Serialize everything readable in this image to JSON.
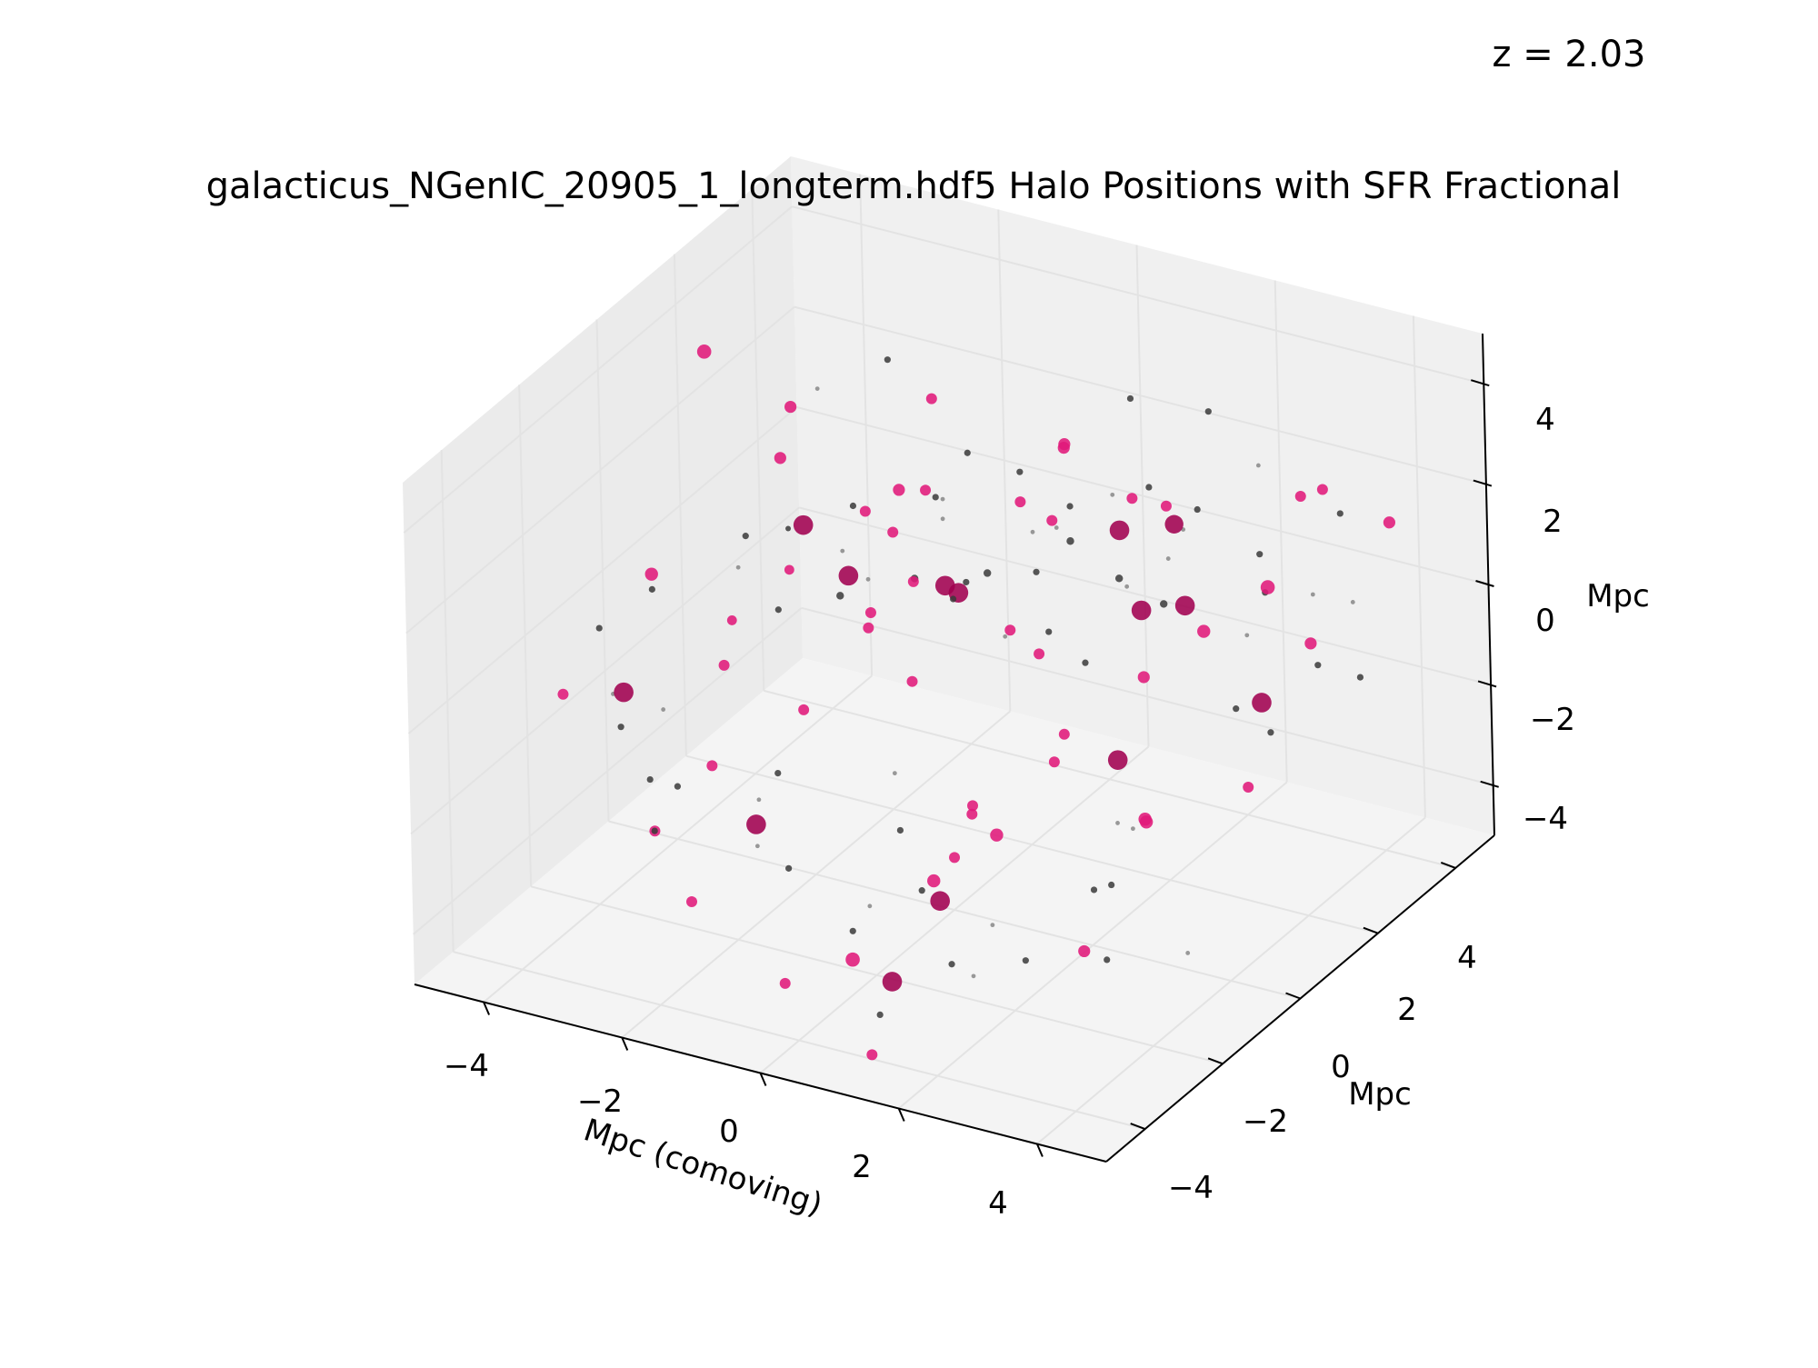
{
  "chart_data": {
    "type": "scatter",
    "title": "galacticus_NGenIC_20905_1_longterm.hdf5 Halo Positions with SFR Fractional",
    "annotation": "z = 2.03",
    "xlabel": "Mpc (comoving)",
    "ylabel": "Mpc",
    "zlabel": "Mpc",
    "xlim": [
      -5,
      5
    ],
    "ylim": [
      -5,
      5
    ],
    "zlim": [
      -5,
      5
    ],
    "x_ticks": [
      "−4",
      "−2",
      "0",
      "2",
      "4"
    ],
    "y_ticks": [
      "−4",
      "−2",
      "0",
      "2",
      "4"
    ],
    "z_ticks": [
      "−4",
      "−2",
      "0",
      "2",
      "4"
    ],
    "grid": true,
    "colors": {
      "pane": "#f2f2f2",
      "grid": "#e3e3e3",
      "star_forming": "#e0197a",
      "star_forming_dark": "#a00050",
      "quiescent": "#3a3a3a"
    },
    "series": [
      {
        "values": [
          [
            -4.6,
            2.0,
            3.2,
            1.3
          ],
          [
            -3.6,
            -1.2,
            1.2,
            1.2
          ],
          [
            -4.4,
            3.8,
            1.0,
            1.1
          ],
          [
            -3.2,
            -4.2,
            0.9,
            1.0
          ],
          [
            -3.3,
            1.6,
            1.8,
            1.1
          ],
          [
            -2.6,
            2.5,
            0.4,
            1.0
          ],
          [
            -2.0,
            3.2,
            2.4,
            1.0
          ],
          [
            -2.4,
            0.2,
            0.8,
            0.9
          ],
          [
            -1.7,
            1.8,
            1.6,
            1.1
          ],
          [
            -2.2,
            -3.7,
            -1.8,
            1.0
          ],
          [
            -2.1,
            -1.8,
            1.2,
            0.9
          ],
          [
            -3.3,
            4.4,
            -1.5,
            1.0
          ],
          [
            -2.9,
            -1.0,
            -2.5,
            1.0
          ],
          [
            -2.0,
            -2.2,
            0.6,
            1.0
          ],
          [
            -1.5,
            0.6,
            -0.3,
            1.0
          ],
          [
            -1.2,
            1.6,
            1.9,
            1.0
          ],
          [
            -0.9,
            4.6,
            0.9,
            1.1
          ],
          [
            -0.4,
            2.6,
            1.3,
            1.0
          ],
          [
            -1.0,
            -0.2,
            0.7,
            1.0
          ],
          [
            -0.6,
            0.2,
            1.2,
            1.0
          ],
          [
            -0.2,
            3.4,
            2.0,
            1.1
          ],
          [
            0.1,
            1.4,
            -0.3,
            1.0
          ],
          [
            0.4,
            2.0,
            1.6,
            1.0
          ],
          [
            0.8,
            4.2,
            0.6,
            1.0
          ],
          [
            1.4,
            2.3,
            2.2,
            1.0
          ],
          [
            0.8,
            0.9,
            -0.2,
            1.0
          ],
          [
            0.4,
            -1.2,
            -3.5,
            1.2
          ],
          [
            0.0,
            -2.6,
            -4.3,
            1.3
          ],
          [
            1.1,
            -0.8,
            -2.6,
            1.2
          ],
          [
            2.4,
            0.7,
            -2.8,
            1.2
          ],
          [
            1.6,
            0.1,
            -1.0,
            1.0
          ],
          [
            2.2,
            1.1,
            -0.3,
            1.1
          ],
          [
            2.8,
            1.6,
            0.5,
            1.2
          ],
          [
            3.4,
            2.2,
            1.2,
            1.3
          ],
          [
            4.0,
            2.6,
            3.1,
            1.0
          ],
          [
            4.5,
            3.4,
            2.1,
            1.1
          ],
          [
            3.0,
            -2.6,
            0.7,
            1.0
          ],
          [
            3.8,
            -1.7,
            -0.8,
            1.2
          ],
          [
            4.2,
            0.2,
            -1.2,
            1.0
          ],
          [
            1.4,
            -2.4,
            -1.9,
            1.0
          ],
          [
            1.9,
            -2.8,
            -0.6,
            1.0
          ],
          [
            3.6,
            -3.0,
            -2.6,
            1.1
          ],
          [
            2.7,
            4.3,
            1.4,
            1.0
          ],
          [
            3.2,
            3.6,
            -0.9,
            1.1
          ],
          [
            -0.3,
            -3.8,
            -4.1,
            1.0
          ],
          [
            1.4,
            -4.6,
            -4.4,
            1.0
          ],
          [
            -1.4,
            -4.2,
            -2.6,
            1.0
          ],
          [
            2.2,
            -3.3,
            0.0,
            1.0
          ],
          [
            0.5,
            -1.8,
            0.9,
            1.0
          ],
          [
            -0.8,
            -2.3,
            0.2,
            1.0
          ]
        ],
        "color": "#e0197a"
      },
      {
        "values": [
          [
            -2.7,
            1.1,
            1.0,
            1.8
          ],
          [
            -1.6,
            0.3,
            0.9,
            1.8
          ],
          [
            -0.6,
            1.0,
            0.6,
            1.8
          ],
          [
            -3.7,
            -1.8,
            -0.8,
            1.8
          ],
          [
            -1.3,
            -2.7,
            -2.0,
            1.8
          ],
          [
            0.6,
            -1.4,
            -3.7,
            1.8
          ],
          [
            1.2,
            -3.7,
            -3.6,
            1.8
          ],
          [
            3.4,
            0.1,
            2.2,
            1.8
          ],
          [
            2.6,
            -0.3,
            -0.9,
            1.8
          ],
          [
            3.1,
            2.5,
            -1.4,
            1.8
          ],
          [
            1.9,
            1.6,
            0.6,
            1.8
          ],
          [
            0.4,
            3.7,
            0.3,
            1.8
          ],
          [
            -1.1,
            2.2,
            -0.5,
            1.8
          ],
          [
            1.6,
            3.0,
            1.3,
            1.7
          ]
        ],
        "color": "#a00050"
      },
      {
        "values": [
          [
            -4.0,
            -0.5,
            0.3,
            0.6
          ],
          [
            -3.6,
            1.2,
            0.4,
            0.6
          ],
          [
            -3.9,
            2.8,
            -0.6,
            0.5
          ],
          [
            -2.8,
            3.5,
            2.7,
            0.6
          ],
          [
            -2.4,
            -0.1,
            0.2,
            0.6
          ],
          [
            -2.2,
            1.5,
            1.3,
            0.6
          ],
          [
            -1.9,
            0.6,
            0.2,
            0.7
          ],
          [
            -1.4,
            2.2,
            1.3,
            0.6
          ],
          [
            -1.1,
            1.1,
            0.5,
            0.7
          ],
          [
            -0.8,
            3.3,
            1.3,
            0.6
          ],
          [
            -0.5,
            1.9,
            0.3,
            0.7
          ],
          [
            -0.2,
            0.5,
            0.8,
            0.6
          ],
          [
            0.2,
            2.8,
            0.6,
            0.7
          ],
          [
            0.5,
            1.4,
            1.0,
            0.6
          ],
          [
            0.9,
            3.6,
            1.4,
            0.6
          ],
          [
            1.3,
            2.1,
            0.7,
            0.7
          ],
          [
            1.7,
            0.5,
            0.2,
            0.6
          ],
          [
            2.0,
            2.9,
            1.8,
            0.6
          ],
          [
            2.4,
            1.3,
            1.1,
            0.7
          ],
          [
            2.9,
            3.0,
            0.4,
            0.6
          ],
          [
            3.3,
            1.5,
            -0.8,
            0.6
          ],
          [
            3.7,
            2.9,
            -0.7,
            0.6
          ],
          [
            4.2,
            0.8,
            -0.5,
            0.6
          ],
          [
            4.6,
            2.4,
            -0.3,
            0.6
          ],
          [
            -3.0,
            -2.4,
            -1.9,
            0.6
          ],
          [
            -2.2,
            -3.1,
            -1.3,
            0.6
          ],
          [
            -1.6,
            -1.6,
            -1.8,
            0.6
          ],
          [
            -0.9,
            -2.6,
            -2.8,
            0.6
          ],
          [
            -0.3,
            -0.8,
            -3.0,
            0.6
          ],
          [
            0.3,
            -3.1,
            -3.3,
            0.6
          ],
          [
            0.8,
            -2.2,
            -2.9,
            0.6
          ],
          [
            1.3,
            -4.2,
            -3.9,
            0.6
          ],
          [
            1.9,
            -3.4,
            -3.2,
            0.6
          ],
          [
            2.4,
            -2.4,
            -3.6,
            0.6
          ],
          [
            2.9,
            -1.5,
            -2.6,
            0.6
          ],
          [
            3.5,
            -2.1,
            -1.9,
            0.6
          ],
          [
            4.1,
            -3.3,
            -2.4,
            0.6
          ],
          [
            -1.8,
            -4.4,
            -1.2,
            0.6
          ],
          [
            -2.6,
            -3.8,
            0.2,
            0.6
          ],
          [
            -3.4,
            -2.9,
            1.3,
            0.6
          ],
          [
            0.2,
            4.4,
            2.4,
            0.6
          ],
          [
            1.1,
            4.8,
            2.2,
            0.6
          ],
          [
            2.2,
            4.1,
            0.2,
            0.6
          ],
          [
            3.5,
            3.9,
            1.6,
            0.6
          ],
          [
            -0.6,
            4.2,
            0.1,
            0.6
          ],
          [
            -1.9,
            3.9,
            0.9,
            0.6
          ],
          [
            0.8,
            -0.9,
            2.4,
            0.6
          ],
          [
            2.1,
            -1.1,
            2.0,
            0.6
          ]
        ],
        "color": "#3a3a3a"
      },
      {
        "values": [
          [
            -3.2,
            0.3,
            0.5,
            0.4
          ],
          [
            -2.6,
            1.9,
            0.0,
            0.4
          ],
          [
            -1.7,
            2.9,
            0.7,
            0.4
          ],
          [
            -1.2,
            0.1,
            1.1,
            0.4
          ],
          [
            -0.9,
            1.5,
            1.5,
            0.4
          ],
          [
            -0.4,
            3.5,
            0.2,
            0.4
          ],
          [
            0.0,
            2.2,
            1.1,
            0.4
          ],
          [
            0.6,
            0.4,
            0.4,
            0.4
          ],
          [
            1.0,
            2.5,
            2.0,
            0.4
          ],
          [
            1.5,
            3.4,
            0.9,
            0.4
          ],
          [
            2.1,
            0.9,
            1.6,
            0.4
          ],
          [
            2.5,
            3.6,
            2.4,
            0.4
          ],
          [
            3.0,
            0.4,
            2.8,
            0.4
          ],
          [
            3.6,
            1.3,
            0.9,
            0.4
          ],
          [
            4.0,
            3.3,
            0.4,
            0.4
          ],
          [
            4.4,
            1.6,
            1.8,
            0.4
          ],
          [
            -4.2,
            -1.2,
            -1.4,
            0.4
          ],
          [
            -2.9,
            -2.2,
            -0.6,
            0.4
          ],
          [
            -2.0,
            -1.4,
            -2.6,
            0.4
          ],
          [
            -1.0,
            -3.2,
            -2.0,
            0.4
          ],
          [
            0.1,
            -1.6,
            -1.2,
            0.4
          ],
          [
            0.9,
            -3.7,
            -2.2,
            0.4
          ],
          [
            1.7,
            -2.0,
            -3.4,
            0.4
          ],
          [
            2.5,
            -3.9,
            -2.9,
            0.4
          ],
          [
            3.2,
            -1.0,
            -1.6,
            0.4
          ],
          [
            3.9,
            -2.6,
            -0.2,
            0.4
          ],
          [
            4.3,
            -1.6,
            -3.3,
            0.4
          ],
          [
            -3.6,
            3.1,
            2.1,
            0.4
          ]
        ],
        "color": "#7a7a7a"
      }
    ]
  }
}
